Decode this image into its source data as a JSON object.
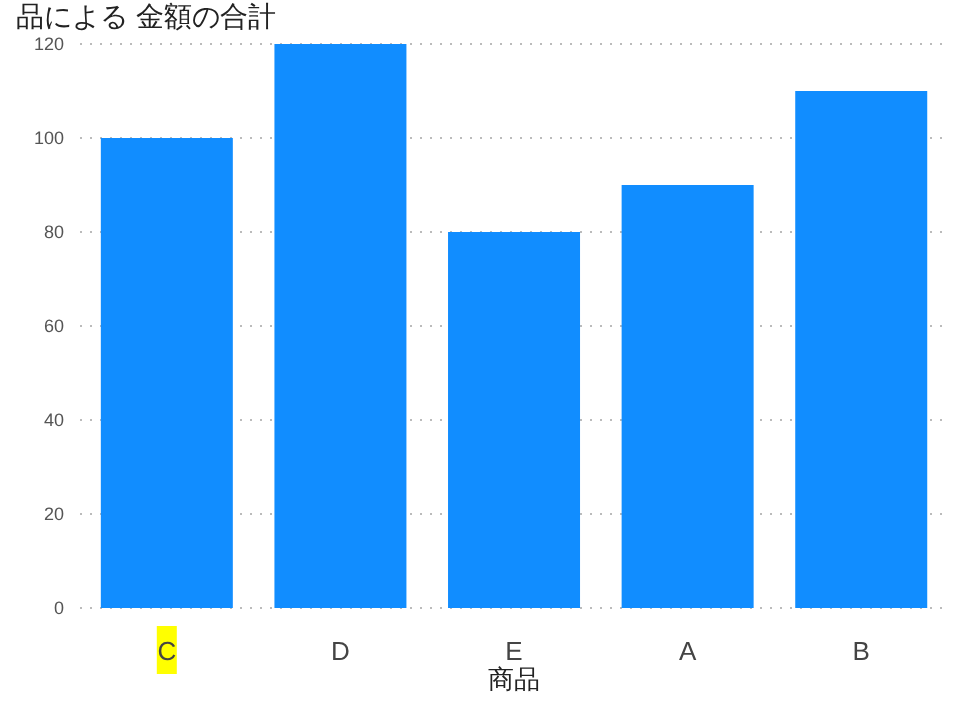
{
  "chart_data": {
    "type": "bar",
    "title": "品による 金額の合計",
    "xlabel": "商品",
    "categories": [
      "C",
      "D",
      "E",
      "A",
      "B"
    ],
    "values": [
      100,
      120,
      80,
      90,
      110
    ],
    "color": "#118dff",
    "ylim": [
      0,
      120
    ],
    "yticks": [
      0,
      20,
      40,
      60,
      80,
      100,
      120
    ],
    "grid": "y"
  }
}
